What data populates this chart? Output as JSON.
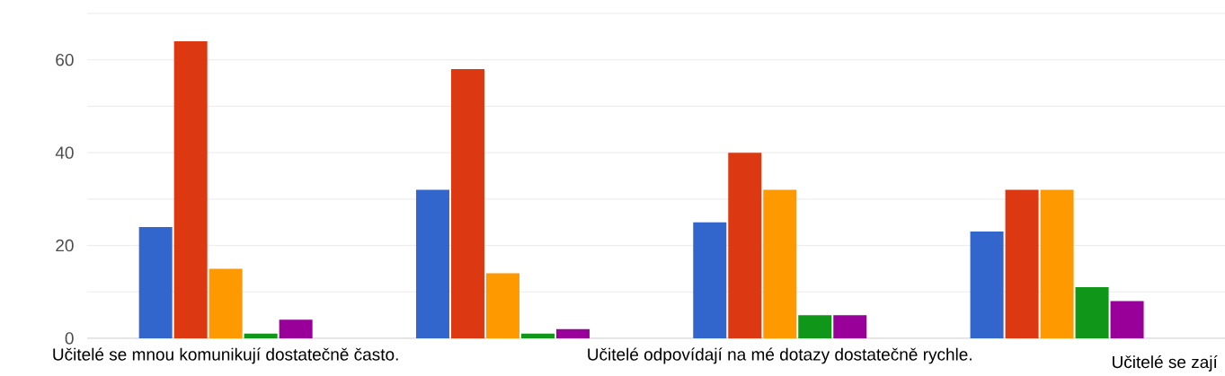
{
  "chart_data": {
    "type": "bar",
    "categories": [
      "Učitelé se mnou komunikují dostatečně často.",
      null,
      "Učitelé odpovídají na mé dotazy dostatečně rychle.",
      null
    ],
    "series": [
      {
        "color": "#3366cc",
        "values": [
          24,
          32,
          25,
          23
        ]
      },
      {
        "color": "#dc3912",
        "values": [
          64,
          58,
          40,
          32
        ]
      },
      {
        "color": "#ff9900",
        "values": [
          15,
          14,
          32,
          32
        ]
      },
      {
        "color": "#109618",
        "values": [
          1,
          1,
          5,
          11
        ]
      },
      {
        "color": "#990099",
        "values": [
          4,
          2,
          5,
          8
        ]
      }
    ],
    "ylim": [
      0,
      70
    ],
    "yticks": [
      0,
      {
        "value": 10,
        "label": null
      },
      20,
      {
        "value": 30,
        "label": null
      },
      40,
      {
        "value": 50,
        "label": null
      },
      60,
      {
        "value": 70,
        "label": null
      }
    ],
    "grid": "y",
    "annotations": [
      "Učitelé se zají"
    ]
  }
}
